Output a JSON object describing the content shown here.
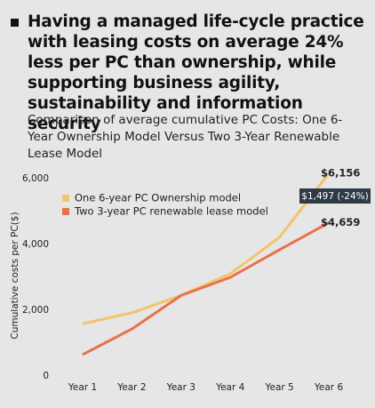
{
  "chart_data": {
    "type": "line",
    "title": "Having a managed life-cycle practice with leasing costs on average 24% less per PC than ownership, while supporting business agility, sustainability and information security",
    "subtitle": "Comparison of average cumulative PC Costs: One 6-Year Ownership Model Versus Two 3-Year Renewable Lease Model",
    "y_label": "Cumulative costs per PC($)",
    "categories": [
      "Year 1",
      "Year 2",
      "Year 3",
      "Year 4",
      "Year 5",
      "Year 6"
    ],
    "series": [
      {
        "name": "One 6-year PC Ownership model",
        "color": "#f2c46b",
        "values": [
          1590,
          1920,
          2450,
          3110,
          4220,
          6156
        ],
        "value_labels": [
          null,
          null,
          null,
          null,
          null,
          "$6,156"
        ]
      },
      {
        "name": "Two 3-year PC renewable lease model",
        "color": "#e8714b",
        "values": [
          650,
          1430,
          2450,
          3000,
          3840,
          4659
        ],
        "value_labels": [
          null,
          null,
          null,
          null,
          null,
          "$4,659"
        ]
      }
    ],
    "annotation": "$1,497 (-24%)",
    "ylim": [
      0,
      6000
    ],
    "yticks": [
      0,
      {
        "value": 2000,
        "label": "2,000"
      },
      {
        "value": 4000,
        "label": "4,000"
      },
      {
        "value": 6000,
        "label": "6,000"
      }
    ],
    "legend": "upper-left",
    "grid": false
  }
}
